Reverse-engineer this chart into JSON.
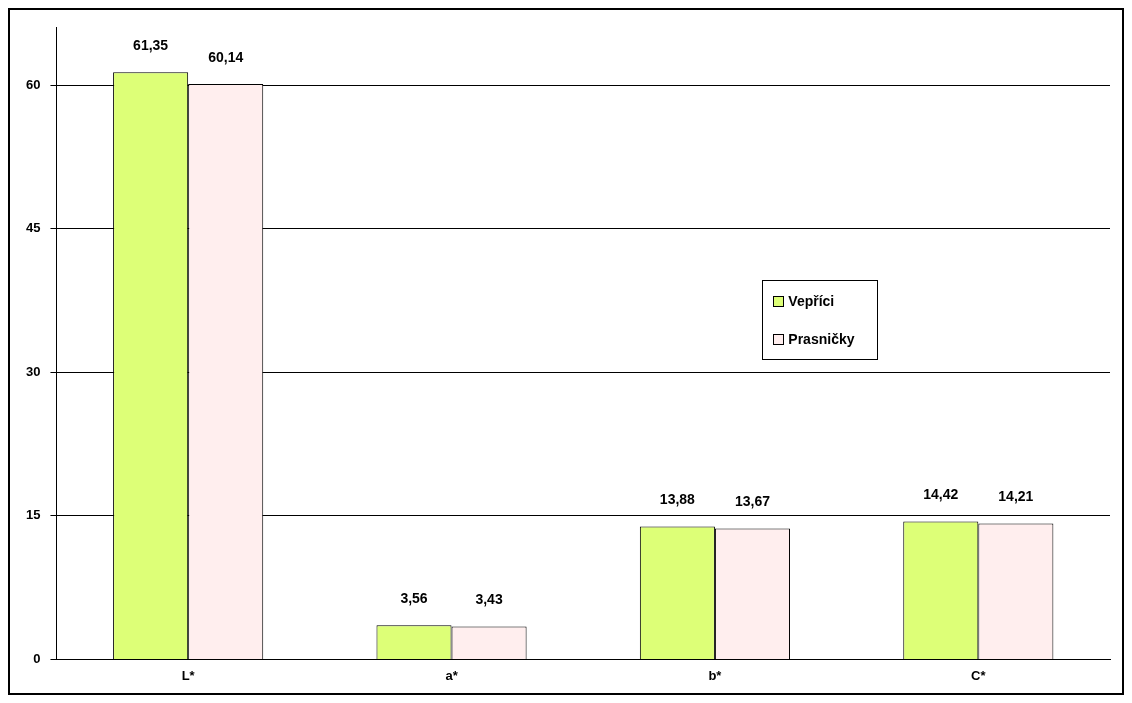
{
  "chart_data": {
    "type": "bar",
    "categories": [
      "L*",
      "a*",
      "b*",
      "C*"
    ],
    "series": [
      {
        "name": "Vepříci",
        "color": "#ddff77",
        "values": [
          61.35,
          3.56,
          13.88,
          14.42
        ],
        "value_labels": [
          "61,35",
          "3,56",
          "13,88",
          "14,42"
        ]
      },
      {
        "name": "Prasničky",
        "color": "#ffeeee",
        "values": [
          60.14,
          3.43,
          13.67,
          14.21
        ],
        "value_labels": [
          "60,14",
          "3,43",
          "13,67",
          "14,21"
        ]
      }
    ],
    "ylim": [
      0,
      66
    ],
    "yticks": [
      0,
      15,
      30,
      45,
      60
    ],
    "grid": "y",
    "legend": "right"
  }
}
